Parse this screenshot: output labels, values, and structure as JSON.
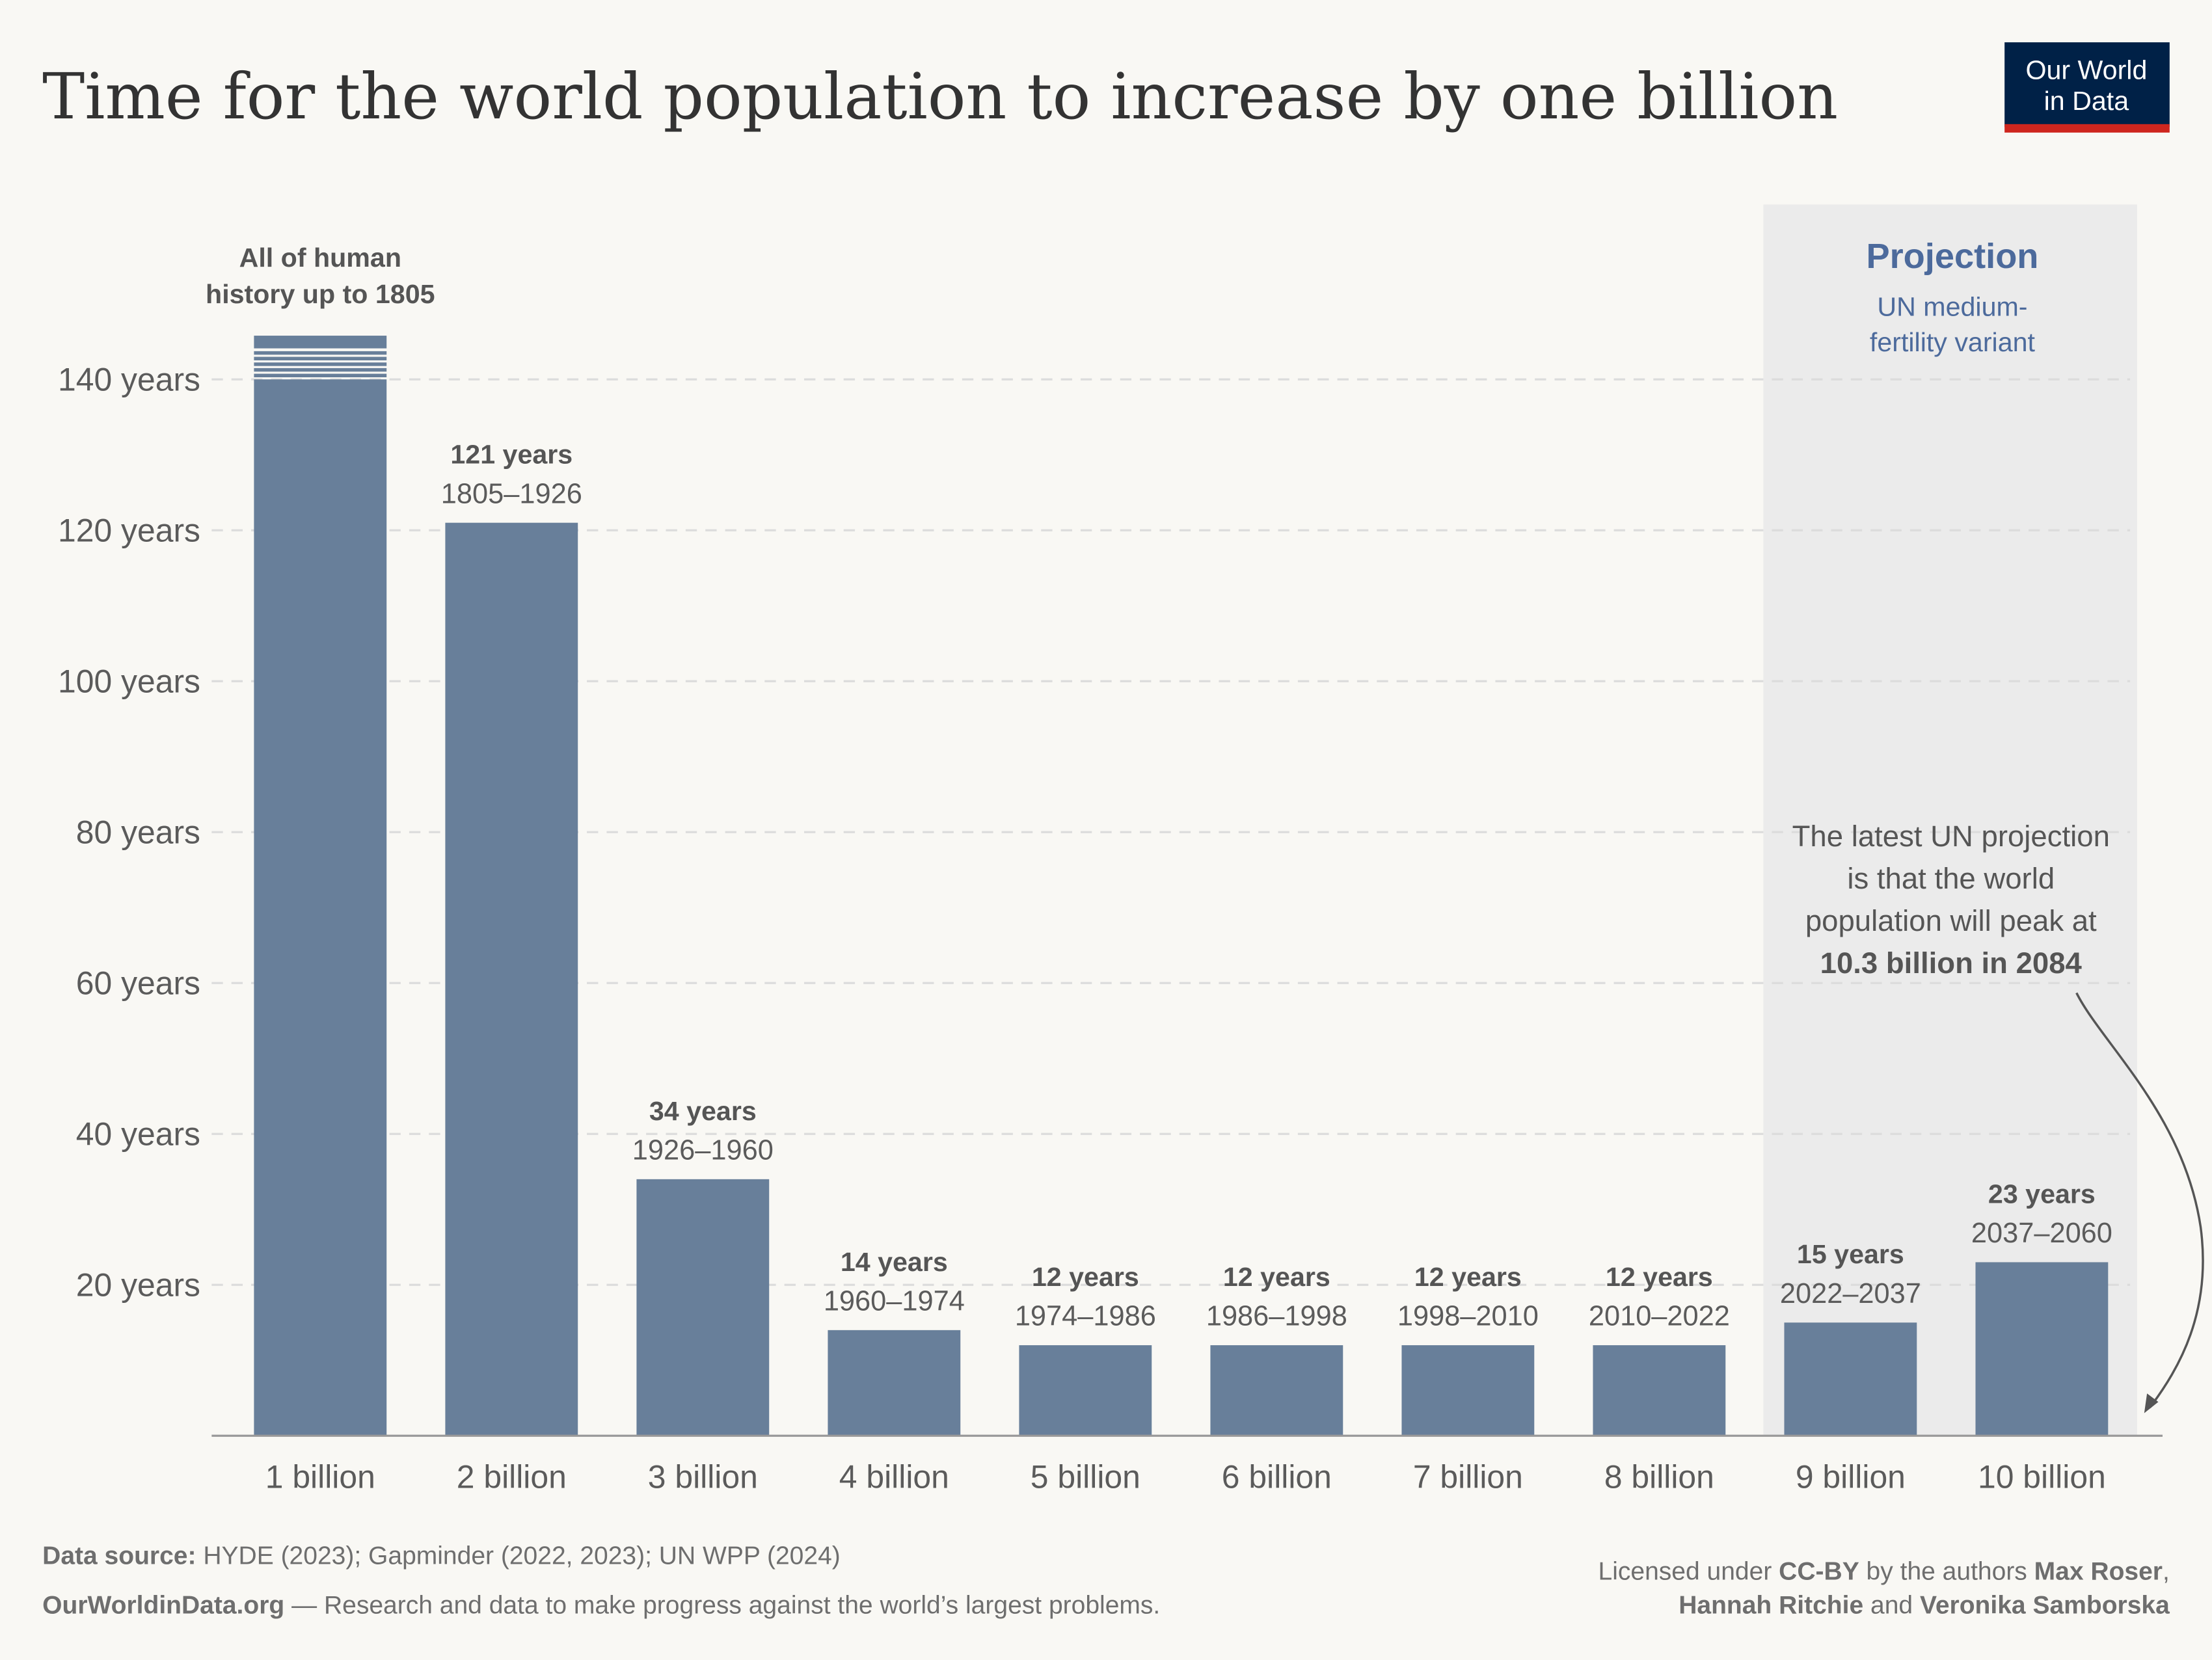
{
  "title": "Time for the world population to increase by one billion",
  "logo": {
    "line1": "Our World",
    "line2": "in Data",
    "bg": "#002147",
    "accent": "#ce261e"
  },
  "colors": {
    "bar": "#687f9a",
    "background": "#f9f8f4",
    "projection_bg": "#ebebeb",
    "projection_text": "#4c6a9c"
  },
  "chart_data": {
    "type": "bar",
    "title": "Time for the world population to increase by one billion",
    "xlabel": "",
    "ylabel": "",
    "ylim": [
      0,
      150
    ],
    "yticks": [
      20,
      40,
      60,
      80,
      100,
      120,
      140
    ],
    "ytick_suffix": " years",
    "grid": true,
    "categories": [
      "1 billion",
      "2 billion",
      "3 billion",
      "4 billion",
      "5 billion",
      "6 billion",
      "7 billion",
      "8 billion",
      "9 billion",
      "10 billion"
    ],
    "values": [
      null,
      121,
      34,
      14,
      12,
      12,
      12,
      12,
      15,
      23
    ],
    "value_labels": [
      "",
      "121 years",
      "34 years",
      "14 years",
      "12 years",
      "12 years",
      "12 years",
      "12 years",
      "15 years",
      "23 years"
    ],
    "range_labels": [
      "",
      "1805–1926",
      "1926–1960",
      "1960–1974",
      "1974–1986",
      "1986–1998",
      "1998–2010",
      "2010–2022",
      "2022–2037",
      "2037–2060"
    ],
    "first_bar": {
      "broken_axis": true,
      "label_line1": "All of human",
      "label_line2": "history up to 1805"
    },
    "projection": {
      "from_category": "9 billion",
      "title": "Projection",
      "subtitle_line1": "UN medium-",
      "subtitle_line2": "fertility variant"
    },
    "annotation": {
      "line1": "The latest UN projection",
      "line2": "is that the world",
      "line3": "population will peak at",
      "line4_bold": "10.3 billion in 2084"
    }
  },
  "footer": {
    "source_label": "Data source:",
    "source_text": " HYDE (2023); Gapminder (2022, 2023); UN WPP (2024)",
    "site": "OurWorldinData.org",
    "tagline": " — Research and data to make progress against the world’s largest problems.",
    "license_prefix": "Licensed under ",
    "license": "CC-BY",
    "license_mid": " by the authors ",
    "author1": "Max Roser",
    "author_sep": ",",
    "author2": "Hannah Ritchie",
    "and": " and ",
    "author3": "Veronika Samborska"
  }
}
